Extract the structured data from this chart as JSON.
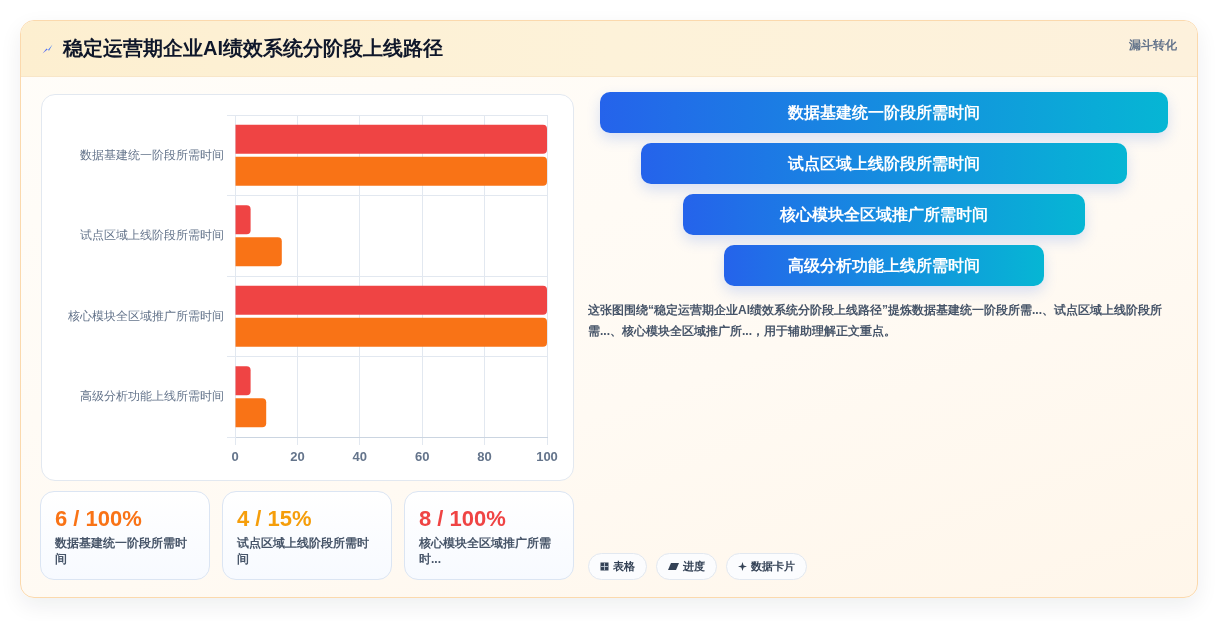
{
  "chart_data": [
    {
      "type": "bar",
      "orientation": "horizontal",
      "title": "稳定运营期企业AI绩效系统分阶段上线路径",
      "categories": [
        "数据基建统一阶段所需时间",
        "试点区域上线阶段所需时间",
        "核心模块全区域推广所需时间",
        "高级分析功能上线所需时间"
      ],
      "series": [
        {
          "color": "#ef4444",
          "values": [
            100,
            5,
            100,
            5
          ]
        },
        {
          "color": "#f97316",
          "values": [
            100,
            15,
            100,
            10
          ]
        }
      ],
      "xlim": [
        0,
        100
      ],
      "xticks": [
        0,
        20,
        40,
        60,
        80,
        100
      ],
      "grid": true
    },
    {
      "type": "other",
      "title": "漏斗转化",
      "categories": [
        "数据基建统一阶段所需时间",
        "试点区域上线阶段所需时间",
        "核心模块全区域推广所需时间",
        "高级分析功能上线所需时间"
      ],
      "annotations": [
        "这张图围绕“稳定运营期企业AI绩效系统分阶段上线路径”提炼数据基建统一阶段所需...、试点区域上线阶段所需...、核心模块全区域推广所...，用于辅助理解正文重点。",
        "表格",
        "进度",
        "数据卡片"
      ]
    },
    {
      "type": "other",
      "annotations": [
        "6 / 100%",
        "数据基建统一阶段所需时间",
        "4 / 15%",
        "试点区域上线阶段所需时间",
        "8 / 100%",
        "核心模块全区域推广所需时..."
      ]
    }
  ]
}
